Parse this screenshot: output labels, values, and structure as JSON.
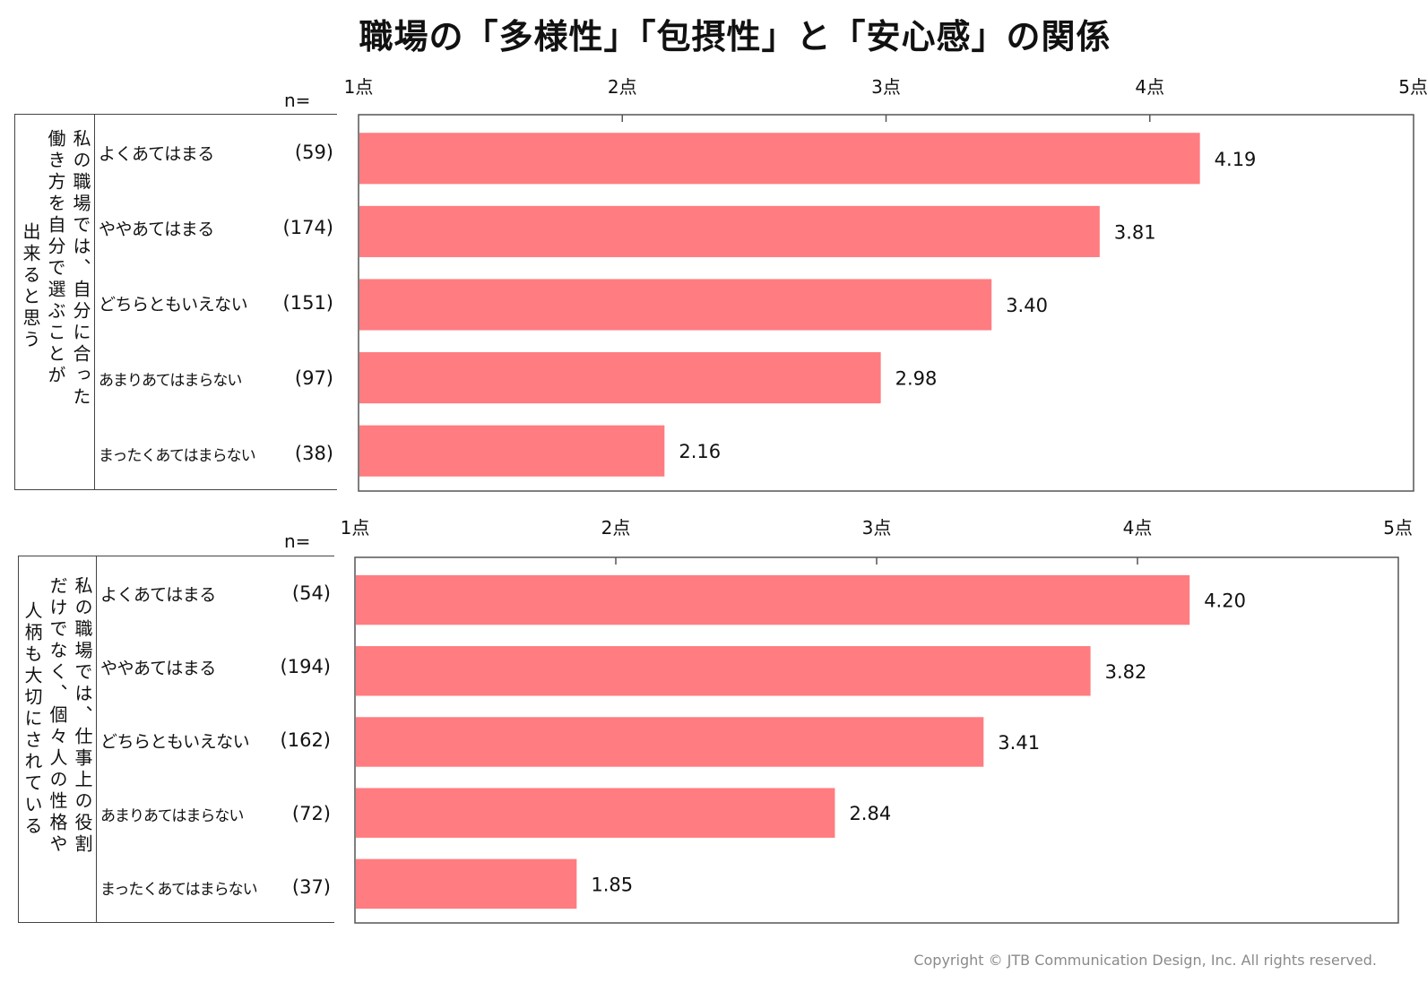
{
  "title": "職場の「多様性」「包摂性」と「安心感」の関係",
  "n_label": "n=",
  "copyright": "Copyright © JTB Communication Design, Inc. All rights reserved.",
  "colors": {
    "bar": "#FF7C80",
    "frame": "#555555",
    "text": "#111111"
  },
  "chart_data": [
    {
      "type": "bar",
      "orientation": "horizontal",
      "question_lines": [
        "私の職場では、自分に合った",
        "働き方を自分で選ぶことが",
        "出来ると思う"
      ],
      "categories": [
        "よくあてはまる",
        "ややあてはまる",
        "どちらともいえない",
        "あまりあてはまらない",
        "まったくあてはまらない"
      ],
      "n": [
        "(59)",
        "(174)",
        "(151)",
        "(97)",
        "(38)"
      ],
      "values": [
        4.19,
        3.81,
        3.4,
        2.98,
        2.16
      ],
      "value_labels": [
        "4.19",
        "3.81",
        "3.40",
        "2.98",
        "2.16"
      ],
      "xlim": [
        1,
        5
      ],
      "ticks": [
        "1点",
        "2点",
        "3点",
        "4点",
        "5点"
      ],
      "grid": false
    },
    {
      "type": "bar",
      "orientation": "horizontal",
      "question_lines": [
        "私の職場では、仕事上の役割",
        "だけでなく、個々人の性格や",
        "人柄も大切にされている"
      ],
      "categories": [
        "よくあてはまる",
        "ややあてはまる",
        "どちらともいえない",
        "あまりあてはまらない",
        "まったくあてはまらない"
      ],
      "n": [
        "(54)",
        "(194)",
        "(162)",
        "(72)",
        "(37)"
      ],
      "values": [
        4.2,
        3.82,
        3.41,
        2.84,
        1.85
      ],
      "value_labels": [
        "4.20",
        "3.82",
        "3.41",
        "2.84",
        "1.85"
      ],
      "xlim": [
        1,
        5
      ],
      "ticks": [
        "1点",
        "2点",
        "3点",
        "4点",
        "5点"
      ],
      "grid": false
    }
  ]
}
